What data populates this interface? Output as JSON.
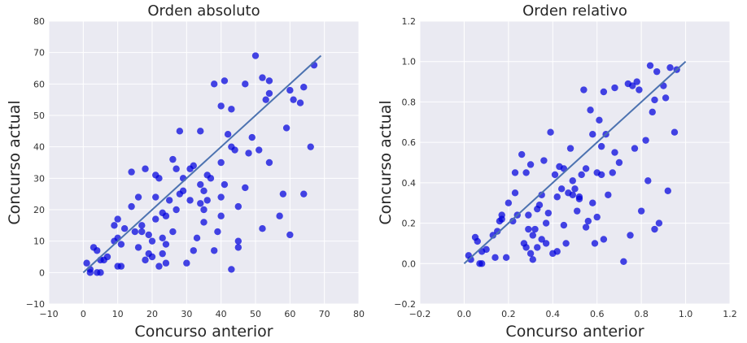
{
  "chart_data": [
    {
      "type": "scatter",
      "title": "Orden absoluto",
      "xlabel": "Concurso anterior",
      "ylabel": "Concurso actual",
      "xlim": [
        -10,
        80
      ],
      "ylim": [
        -10,
        80
      ],
      "xticks": [
        "−10",
        "0",
        "10",
        "20",
        "30",
        "40",
        "50",
        "60",
        "70",
        "80"
      ],
      "yticks": [
        "−10",
        "0",
        "10",
        "20",
        "30",
        "40",
        "50",
        "60",
        "70",
        "80"
      ],
      "grid": true,
      "colors": {
        "points": "#0000dd",
        "line": "#4c72b0",
        "background": "#eaeaf2",
        "grid": "#ffffff"
      },
      "points": [
        [
          1,
          3
        ],
        [
          2,
          0
        ],
        [
          2,
          1
        ],
        [
          3,
          8
        ],
        [
          4,
          7
        ],
        [
          4,
          0
        ],
        [
          5,
          0
        ],
        [
          5,
          4
        ],
        [
          6,
          4
        ],
        [
          7,
          5
        ],
        [
          9,
          10
        ],
        [
          9,
          15
        ],
        [
          10,
          2
        ],
        [
          10,
          11
        ],
        [
          10,
          17
        ],
        [
          11,
          2
        ],
        [
          11,
          9
        ],
        [
          12,
          14
        ],
        [
          14,
          21
        ],
        [
          14,
          32
        ],
        [
          15,
          13
        ],
        [
          16,
          8
        ],
        [
          16,
          24
        ],
        [
          17,
          13
        ],
        [
          17,
          15
        ],
        [
          18,
          4
        ],
        [
          18,
          33
        ],
        [
          19,
          12
        ],
        [
          19,
          6
        ],
        [
          20,
          5
        ],
        [
          20,
          10
        ],
        [
          21,
          17
        ],
        [
          21,
          24
        ],
        [
          21,
          31
        ],
        [
          22,
          30
        ],
        [
          22,
          2
        ],
        [
          23,
          11
        ],
        [
          23,
          19
        ],
        [
          23,
          6
        ],
        [
          24,
          3
        ],
        [
          24,
          9
        ],
        [
          24,
          18
        ],
        [
          25,
          23
        ],
        [
          26,
          36
        ],
        [
          26,
          13
        ],
        [
          27,
          20
        ],
        [
          27,
          33
        ],
        [
          28,
          45
        ],
        [
          28,
          25
        ],
        [
          29,
          30
        ],
        [
          29,
          26
        ],
        [
          30,
          3
        ],
        [
          31,
          23
        ],
        [
          31,
          33
        ],
        [
          32,
          7
        ],
        [
          32,
          34
        ],
        [
          33,
          11
        ],
        [
          34,
          22
        ],
        [
          34,
          45
        ],
        [
          34,
          28
        ],
        [
          35,
          16
        ],
        [
          35,
          20
        ],
        [
          35,
          26
        ],
        [
          36,
          23
        ],
        [
          36,
          31
        ],
        [
          37,
          30
        ],
        [
          38,
          60
        ],
        [
          38,
          7
        ],
        [
          39,
          13
        ],
        [
          40,
          53
        ],
        [
          40,
          35
        ],
        [
          40,
          24
        ],
        [
          40,
          18
        ],
        [
          41,
          28
        ],
        [
          41,
          61
        ],
        [
          42,
          44
        ],
        [
          43,
          1
        ],
        [
          43,
          52
        ],
        [
          43,
          40
        ],
        [
          44,
          39
        ],
        [
          45,
          21
        ],
        [
          45,
          10
        ],
        [
          45,
          8
        ],
        [
          47,
          27
        ],
        [
          47,
          60
        ],
        [
          48,
          38
        ],
        [
          49,
          43
        ],
        [
          50,
          69
        ],
        [
          51,
          39
        ],
        [
          52,
          62
        ],
        [
          52,
          14
        ],
        [
          53,
          55
        ],
        [
          54,
          57
        ],
        [
          54,
          35
        ],
        [
          54,
          61
        ],
        [
          57,
          18
        ],
        [
          58,
          25
        ],
        [
          59,
          46
        ],
        [
          60,
          58
        ],
        [
          60,
          12
        ],
        [
          61,
          55
        ],
        [
          63,
          54
        ],
        [
          64,
          59
        ],
        [
          64,
          25
        ],
        [
          66,
          40
        ],
        [
          67,
          66
        ]
      ],
      "fit_line": [
        [
          0,
          0
        ],
        [
          69,
          69
        ]
      ]
    },
    {
      "type": "scatter",
      "title": "Orden relativo",
      "xlabel": "Concurso anterior",
      "ylabel": "Concurso actual",
      "xlim": [
        -0.2,
        1.2
      ],
      "ylim": [
        -0.2,
        1.2
      ],
      "xticks": [
        "−0.2",
        "0.0",
        "0.2",
        "0.4",
        "0.6",
        "0.8",
        "1.0",
        "1.2"
      ],
      "yticks": [
        "−0.2",
        "0.0",
        "0.2",
        "0.4",
        "0.6",
        "0.8",
        "1.0",
        "1.2"
      ],
      "grid": true,
      "colors": {
        "points": "#0000dd",
        "line": "#4c72b0",
        "background": "#eaeaf2",
        "grid": "#ffffff"
      },
      "points": [
        [
          0.02,
          0.04
        ],
        [
          0.03,
          0.02
        ],
        [
          0.05,
          0.13
        ],
        [
          0.06,
          0.11
        ],
        [
          0.07,
          0.0
        ],
        [
          0.08,
          0.0
        ],
        [
          0.08,
          0.06
        ],
        [
          0.1,
          0.07
        ],
        [
          0.13,
          0.14
        ],
        [
          0.14,
          0.03
        ],
        [
          0.15,
          0.16
        ],
        [
          0.16,
          0.21
        ],
        [
          0.17,
          0.22
        ],
        [
          0.17,
          0.24
        ],
        [
          0.19,
          0.03
        ],
        [
          0.2,
          0.3
        ],
        [
          0.22,
          0.21
        ],
        [
          0.23,
          0.35
        ],
        [
          0.23,
          0.45
        ],
        [
          0.24,
          0.24
        ],
        [
          0.26,
          0.54
        ],
        [
          0.27,
          0.1
        ],
        [
          0.28,
          0.08
        ],
        [
          0.28,
          0.45
        ],
        [
          0.29,
          0.17
        ],
        [
          0.29,
          0.24
        ],
        [
          0.3,
          0.49
        ],
        [
          0.3,
          0.05
        ],
        [
          0.31,
          0.02
        ],
        [
          0.31,
          0.14
        ],
        [
          0.32,
          0.17
        ],
        [
          0.33,
          0.27
        ],
        [
          0.33,
          0.08
        ],
        [
          0.34,
          0.29
        ],
        [
          0.35,
          0.34
        ],
        [
          0.35,
          0.12
        ],
        [
          0.36,
          0.51
        ],
        [
          0.37,
          0.2
        ],
        [
          0.37,
          0.1
        ],
        [
          0.38,
          0.25
        ],
        [
          0.39,
          0.65
        ],
        [
          0.4,
          0.05
        ],
        [
          0.41,
          0.44
        ],
        [
          0.42,
          0.33
        ],
        [
          0.42,
          0.06
        ],
        [
          0.43,
          0.48
        ],
        [
          0.44,
          0.37
        ],
        [
          0.45,
          0.47
        ],
        [
          0.45,
          0.19
        ],
        [
          0.46,
          0.1
        ],
        [
          0.47,
          0.35
        ],
        [
          0.48,
          0.57
        ],
        [
          0.49,
          0.41
        ],
        [
          0.49,
          0.34
        ],
        [
          0.5,
          0.37
        ],
        [
          0.51,
          0.26
        ],
        [
          0.52,
          0.33
        ],
        [
          0.52,
          0.32
        ],
        [
          0.53,
          0.44
        ],
        [
          0.54,
          0.86
        ],
        [
          0.55,
          0.47
        ],
        [
          0.55,
          0.18
        ],
        [
          0.56,
          0.21
        ],
        [
          0.57,
          0.76
        ],
        [
          0.58,
          0.64
        ],
        [
          0.58,
          0.3
        ],
        [
          0.59,
          0.1
        ],
        [
          0.6,
          0.23
        ],
        [
          0.6,
          0.45
        ],
        [
          0.61,
          0.71
        ],
        [
          0.62,
          0.44
        ],
        [
          0.62,
          0.58
        ],
        [
          0.63,
          0.85
        ],
        [
          0.63,
          0.12
        ],
        [
          0.64,
          0.64
        ],
        [
          0.65,
          0.34
        ],
        [
          0.67,
          0.45
        ],
        [
          0.68,
          0.55
        ],
        [
          0.68,
          0.87
        ],
        [
          0.7,
          0.5
        ],
        [
          0.72,
          0.01
        ],
        [
          0.74,
          0.89
        ],
        [
          0.75,
          0.14
        ],
        [
          0.76,
          0.88
        ],
        [
          0.77,
          0.57
        ],
        [
          0.78,
          0.9
        ],
        [
          0.79,
          0.86
        ],
        [
          0.8,
          0.26
        ],
        [
          0.82,
          0.61
        ],
        [
          0.83,
          0.41
        ],
        [
          0.84,
          0.98
        ],
        [
          0.85,
          0.75
        ],
        [
          0.86,
          0.17
        ],
        [
          0.86,
          0.81
        ],
        [
          0.87,
          0.95
        ],
        [
          0.88,
          0.2
        ],
        [
          0.9,
          0.88
        ],
        [
          0.91,
          0.82
        ],
        [
          0.92,
          0.36
        ],
        [
          0.93,
          0.97
        ],
        [
          0.95,
          0.65
        ],
        [
          0.96,
          0.96
        ]
      ],
      "fit_line": [
        [
          0.0,
          0.0
        ],
        [
          1.0,
          1.0
        ]
      ]
    }
  ]
}
